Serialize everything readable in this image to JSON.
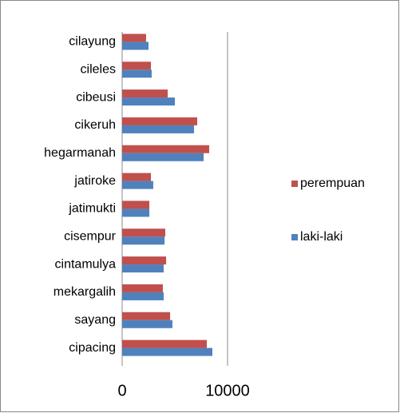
{
  "chart_data": {
    "type": "barh",
    "categories": [
      "cipacing",
      "sayang",
      "mekargalih",
      "cintamulya",
      "cisempur",
      "jatimukti",
      "jatiroke",
      "hegarmanah",
      "cikeruh",
      "cibeusi",
      "cileles",
      "cilayung"
    ],
    "series": [
      {
        "name": "laki-laki",
        "color": "#4f81bd",
        "values": [
          8560,
          4770,
          3940,
          3940,
          4020,
          2580,
          2950,
          7730,
          6820,
          5000,
          2800,
          2500
        ]
      },
      {
        "name": "perempuan",
        "color": "#c0504d",
        "values": [
          8030,
          4550,
          3860,
          4170,
          4090,
          2580,
          2730,
          8260,
          7120,
          4320,
          2730,
          2270
        ]
      }
    ],
    "xlim": [
      0,
      10000
    ],
    "xticks": [
      0,
      10000
    ],
    "grid": true,
    "legend": "right"
  }
}
